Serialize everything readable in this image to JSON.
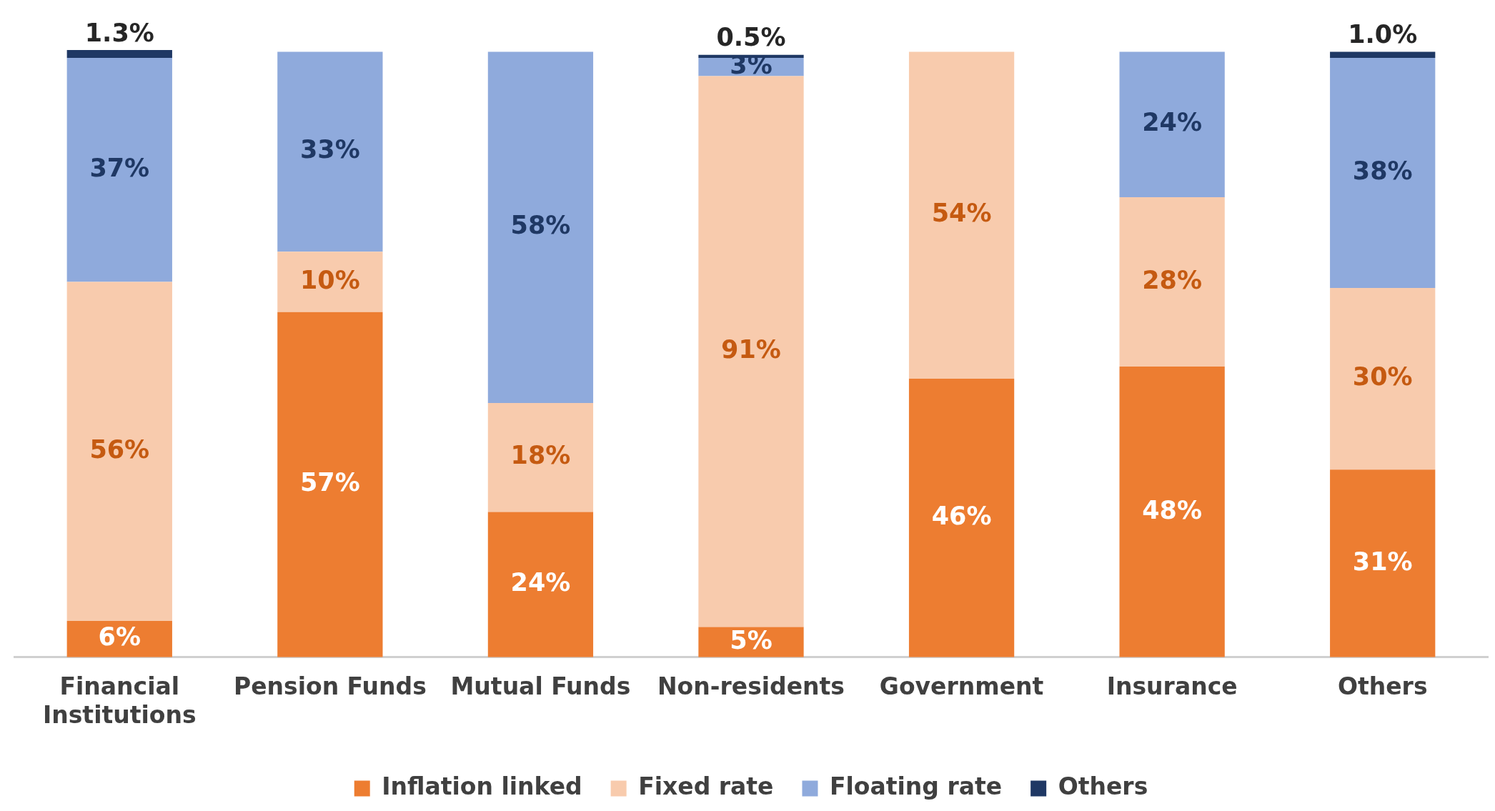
{
  "chart_data": {
    "type": "bar",
    "stacked": true,
    "categories": [
      "Financial Institutions",
      "Pension Funds",
      "Mutual Funds",
      "Non-residents",
      "Government",
      "Insurance",
      "Others"
    ],
    "series": [
      {
        "name": "Inflation linked",
        "color": "#ed7d31",
        "values": [
          6,
          57,
          24,
          5,
          46,
          48,
          31
        ],
        "value_labels": [
          "6%",
          "57%",
          "24%",
          "5%",
          "46%",
          "48%",
          "31%"
        ]
      },
      {
        "name": "Fixed rate",
        "color": "#f8cbad",
        "values": [
          56,
          10,
          18,
          91,
          54,
          28,
          30
        ],
        "value_labels": [
          "56%",
          "10%",
          "18%",
          "91%",
          "54%",
          "28%",
          "30%"
        ]
      },
      {
        "name": "Floating rate",
        "color": "#8faadc",
        "values": [
          37,
          33,
          58,
          3,
          0,
          24,
          38
        ],
        "value_labels": [
          "37%",
          "33%",
          "58%",
          "3%",
          null,
          "24%",
          "38%"
        ]
      },
      {
        "name": "Others",
        "color": "#1f3864",
        "values": [
          1.3,
          0,
          0,
          0.5,
          0,
          0,
          1.0
        ],
        "value_labels": [
          "1.3%",
          null,
          null,
          "0.5%",
          null,
          null,
          "1.0%"
        ]
      }
    ],
    "legend": "bottom",
    "grid": false
  }
}
